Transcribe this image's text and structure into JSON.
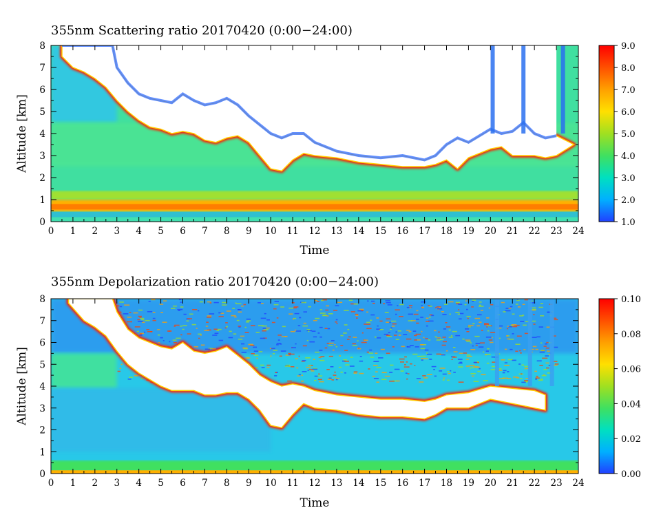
{
  "chart_data": [
    {
      "type": "heatmap",
      "title": "355nm Scattering ratio  20170420 (0:00−24:00)",
      "xlabel": "Time",
      "ylabel": "Altitude [km]",
      "xlim": [
        0,
        24
      ],
      "ylim": [
        0,
        8
      ],
      "x_ticks": [
        0,
        1,
        2,
        3,
        4,
        5,
        6,
        7,
        8,
        9,
        10,
        11,
        12,
        13,
        14,
        15,
        16,
        17,
        18,
        19,
        20,
        21,
        22,
        23,
        24
      ],
      "y_ticks": [
        0,
        1,
        2,
        3,
        4,
        5,
        6,
        7,
        8
      ],
      "colorbar": {
        "min": 1.0,
        "max": 9.0,
        "ticks": [
          "1.0",
          "2.0",
          "3.0",
          "4.0",
          "5.0",
          "6.0",
          "7.0",
          "8.0",
          "9.0"
        ],
        "colormap": [
          "#2040ff",
          "#00b0ff",
          "#00e0c0",
          "#40e060",
          "#a0e020",
          "#ffe000",
          "#ffa000",
          "#ff5000",
          "#ff0000"
        ],
        "above_max_color": "#ffffff"
      },
      "cloud_base_km": [
        [
          0.5,
          7.5
        ],
        [
          1,
          7
        ],
        [
          1.5,
          6.8
        ],
        [
          2,
          6.5
        ],
        [
          2.5,
          6.1
        ],
        [
          3,
          5.5
        ],
        [
          3.5,
          5.0
        ],
        [
          4,
          4.6
        ],
        [
          4.5,
          4.3
        ],
        [
          5,
          4.2
        ],
        [
          5.5,
          4.0
        ],
        [
          6,
          4.1
        ],
        [
          6.5,
          4.0
        ],
        [
          7,
          3.7
        ],
        [
          7.5,
          3.6
        ],
        [
          8,
          3.8
        ],
        [
          8.5,
          3.9
        ],
        [
          9,
          3.6
        ],
        [
          9.5,
          3.0
        ],
        [
          10,
          2.4
        ],
        [
          10.5,
          2.3
        ],
        [
          11,
          2.8
        ],
        [
          11.5,
          3.1
        ],
        [
          12,
          3.0
        ],
        [
          13,
          2.9
        ],
        [
          14,
          2.7
        ],
        [
          15,
          2.6
        ],
        [
          16,
          2.5
        ],
        [
          17,
          2.5
        ],
        [
          17.5,
          2.6
        ],
        [
          18,
          2.8
        ],
        [
          18.5,
          2.4
        ],
        [
          19,
          2.9
        ],
        [
          20,
          3.3
        ],
        [
          20.5,
          3.4
        ],
        [
          21,
          3.0
        ],
        [
          22,
          3.0
        ],
        [
          22.5,
          2.9
        ],
        [
          23,
          3.0
        ],
        [
          23.8,
          3.5
        ]
      ],
      "cloud_top_km": [
        [
          0.5,
          8
        ],
        [
          2.8,
          8
        ],
        [
          3,
          7.0
        ],
        [
          3.5,
          6.3
        ],
        [
          4,
          5.8
        ],
        [
          4.5,
          5.6
        ],
        [
          5,
          5.5
        ],
        [
          5.5,
          5.4
        ],
        [
          6,
          5.8
        ],
        [
          6.5,
          5.5
        ],
        [
          7,
          5.3
        ],
        [
          7.5,
          5.4
        ],
        [
          8,
          5.6
        ],
        [
          8.5,
          5.3
        ],
        [
          9,
          4.8
        ],
        [
          9.5,
          4.4
        ],
        [
          10,
          4.0
        ],
        [
          10.5,
          3.8
        ],
        [
          11,
          4.0
        ],
        [
          11.5,
          4.0
        ],
        [
          12,
          3.6
        ],
        [
          13,
          3.2
        ],
        [
          14,
          3.0
        ],
        [
          15,
          2.9
        ],
        [
          16,
          3.0
        ],
        [
          17,
          2.8
        ],
        [
          17.5,
          3.0
        ],
        [
          18,
          3.5
        ],
        [
          18.5,
          3.8
        ],
        [
          19,
          3.6
        ],
        [
          19.5,
          3.9
        ],
        [
          20,
          4.2
        ],
        [
          20.5,
          4.0
        ],
        [
          21,
          4.1
        ],
        [
          21.5,
          4.5
        ],
        [
          22,
          4.0
        ],
        [
          22.5,
          3.8
        ],
        [
          23,
          3.9
        ]
      ],
      "boundary_layer_km": [
        0.45,
        0.9
      ],
      "annotation_columns_h": [
        20.1,
        21.5,
        23.3
      ]
    },
    {
      "type": "heatmap",
      "title": "355nm Depolarization ratio  20170420 (0:00−24:00)",
      "xlabel": "Time",
      "ylabel": "Altitude [km]",
      "xlim": [
        0,
        24
      ],
      "ylim": [
        0,
        8
      ],
      "x_ticks": [
        0,
        1,
        2,
        3,
        4,
        5,
        6,
        7,
        8,
        9,
        10,
        11,
        12,
        13,
        14,
        15,
        16,
        17,
        18,
        19,
        20,
        21,
        22,
        23,
        24
      ],
      "y_ticks": [
        0,
        1,
        2,
        3,
        4,
        5,
        6,
        7,
        8
      ],
      "colorbar": {
        "min": 0.0,
        "max": 0.1,
        "ticks": [
          "0.00",
          "0.02",
          "0.04",
          "0.06",
          "0.08",
          "0.10"
        ],
        "colormap": [
          "#2040ff",
          "#00b0ff",
          "#00e0c0",
          "#40e060",
          "#a0e020",
          "#ffe000",
          "#ffa000",
          "#ff5000",
          "#ff0000"
        ],
        "above_max_color": "#ffffff"
      },
      "cloud_base_km": [
        [
          0.8,
          7.8
        ],
        [
          1.5,
          7.0
        ],
        [
          2,
          6.7
        ],
        [
          2.5,
          6.3
        ],
        [
          3,
          5.6
        ],
        [
          3.5,
          5.0
        ],
        [
          4,
          4.6
        ],
        [
          4.5,
          4.3
        ],
        [
          5,
          4.0
        ],
        [
          5.5,
          3.8
        ],
        [
          6,
          3.8
        ],
        [
          6.5,
          3.8
        ],
        [
          7,
          3.6
        ],
        [
          7.5,
          3.6
        ],
        [
          8,
          3.7
        ],
        [
          8.5,
          3.7
        ],
        [
          9,
          3.4
        ],
        [
          9.5,
          2.9
        ],
        [
          10,
          2.2
        ],
        [
          10.5,
          2.1
        ],
        [
          11,
          2.7
        ],
        [
          11.5,
          3.2
        ],
        [
          12,
          3.0
        ],
        [
          13,
          2.9
        ],
        [
          14,
          2.7
        ],
        [
          15,
          2.6
        ],
        [
          16,
          2.6
        ],
        [
          17,
          2.5
        ],
        [
          17.5,
          2.7
        ],
        [
          18,
          3.0
        ],
        [
          19,
          3.0
        ],
        [
          20,
          3.4
        ],
        [
          21,
          3.2
        ],
        [
          22,
          3.0
        ],
        [
          22.5,
          2.9
        ]
      ],
      "cloud_top_km": [
        [
          0.8,
          8
        ],
        [
          2.8,
          8
        ],
        [
          3,
          7.4
        ],
        [
          3.5,
          6.6
        ],
        [
          4,
          6.2
        ],
        [
          4.5,
          6.0
        ],
        [
          5,
          5.8
        ],
        [
          5.5,
          5.7
        ],
        [
          6,
          6.0
        ],
        [
          6.5,
          5.6
        ],
        [
          7,
          5.5
        ],
        [
          7.5,
          5.6
        ],
        [
          8,
          5.8
        ],
        [
          8.5,
          5.4
        ],
        [
          9,
          5.0
        ],
        [
          9.5,
          4.5
        ],
        [
          10,
          4.2
        ],
        [
          10.5,
          4.0
        ],
        [
          11,
          4.1
        ],
        [
          11.5,
          4.0
        ],
        [
          12,
          3.8
        ],
        [
          13,
          3.6
        ],
        [
          14,
          3.5
        ],
        [
          15,
          3.4
        ],
        [
          16,
          3.4
        ],
        [
          17,
          3.3
        ],
        [
          17.5,
          3.4
        ],
        [
          18,
          3.6
        ],
        [
          19,
          3.7
        ],
        [
          20,
          4.0
        ],
        [
          21,
          3.9
        ],
        [
          22,
          3.8
        ],
        [
          22.5,
          3.6
        ]
      ],
      "boundary_layer_km": [
        0.0,
        0.4
      ],
      "annotation_columns_h": [
        20.3,
        21.8,
        22.8
      ]
    }
  ]
}
